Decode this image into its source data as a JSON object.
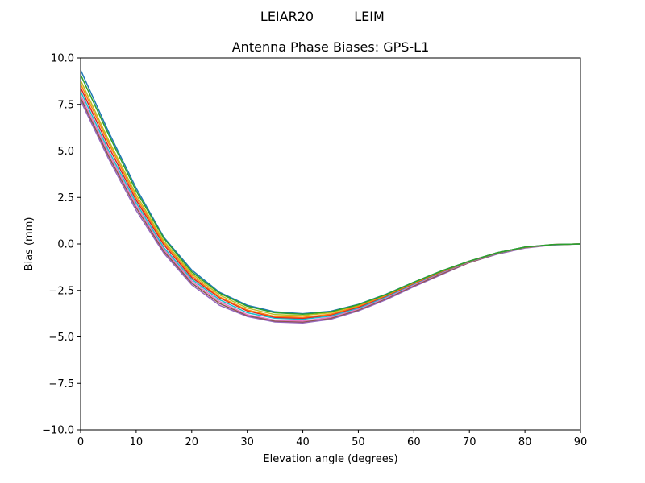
{
  "figure": {
    "suptitle_left": "LEIAR20",
    "suptitle_right": "LEIM"
  },
  "chart_data": {
    "type": "line",
    "title": "Antenna Phase Biases: GPS-L1",
    "xlabel": "Elevation angle (degrees)",
    "ylabel": "Bias (mm)",
    "xlim": [
      0,
      90
    ],
    "ylim": [
      -10,
      10
    ],
    "grid": false,
    "x": [
      0,
      5,
      10,
      15,
      20,
      25,
      30,
      35,
      40,
      45,
      50,
      55,
      60,
      65,
      70,
      75,
      80,
      85,
      90
    ],
    "xticks": [
      {
        "value": 0,
        "label": "0"
      },
      {
        "value": 10,
        "label": "10"
      },
      {
        "value": 20,
        "label": "20"
      },
      {
        "value": 30,
        "label": "30"
      },
      {
        "value": 40,
        "label": "40"
      },
      {
        "value": 50,
        "label": "50"
      },
      {
        "value": 60,
        "label": "60"
      },
      {
        "value": 70,
        "label": "70"
      },
      {
        "value": 80,
        "label": "80"
      },
      {
        "value": 90,
        "label": "90"
      }
    ],
    "yticks": [
      {
        "value": 10,
        "label": "10.0"
      },
      {
        "value": 7.5,
        "label": "7.5"
      },
      {
        "value": 5,
        "label": "5.0"
      },
      {
        "value": 2.5,
        "label": "2.5"
      },
      {
        "value": 0,
        "label": "0.0"
      },
      {
        "value": -2.5,
        "label": "−2.5"
      },
      {
        "value": -5,
        "label": "−5.0"
      },
      {
        "value": -7.5,
        "label": "−7.5"
      },
      {
        "value": -10,
        "label": "−10.0"
      }
    ],
    "series": [
      {
        "color": "#9467bd",
        "values": [
          7.7,
          4.6,
          1.8,
          -0.5,
          -2.2,
          -3.3,
          -3.9,
          -4.2,
          -4.25,
          -4.05,
          -3.6,
          -3.0,
          -2.3,
          -1.65,
          -1.0,
          -0.55,
          -0.22,
          -0.05,
          0.0
        ]
      },
      {
        "color": "#8c564b",
        "values": [
          7.85,
          4.75,
          1.95,
          -0.4,
          -2.1,
          -3.2,
          -3.85,
          -4.15,
          -4.2,
          -4.0,
          -3.55,
          -2.95,
          -2.25,
          -1.6,
          -1.0,
          -0.52,
          -0.2,
          -0.04,
          0.0
        ]
      },
      {
        "color": "#e377c2",
        "values": [
          8.0,
          4.9,
          2.05,
          -0.3,
          -2.0,
          -3.1,
          -3.8,
          -4.1,
          -4.15,
          -3.95,
          -3.5,
          -2.9,
          -2.2,
          -1.55,
          -0.97,
          -0.5,
          -0.2,
          -0.04,
          0.0
        ]
      },
      {
        "color": "#17becf",
        "values": [
          8.2,
          5.05,
          2.2,
          -0.2,
          -1.9,
          -3.0,
          -3.7,
          -4.0,
          -4.05,
          -3.88,
          -3.45,
          -2.85,
          -2.15,
          -1.52,
          -0.95,
          -0.5,
          -0.19,
          -0.04,
          0.0
        ]
      },
      {
        "color": "#d62728",
        "values": [
          8.4,
          5.25,
          2.35,
          -0.05,
          -1.8,
          -2.9,
          -3.6,
          -3.95,
          -4.0,
          -3.82,
          -3.4,
          -2.8,
          -2.12,
          -1.5,
          -0.94,
          -0.49,
          -0.18,
          -0.03,
          0.0
        ]
      },
      {
        "color": "#ff7f0e",
        "values": [
          8.6,
          5.45,
          2.5,
          0.05,
          -1.7,
          -2.85,
          -3.55,
          -3.9,
          -3.95,
          -3.78,
          -3.35,
          -2.77,
          -2.1,
          -1.48,
          -0.93,
          -0.48,
          -0.18,
          -0.03,
          0.0
        ]
      },
      {
        "color": "#bcbd22",
        "values": [
          8.8,
          5.6,
          2.65,
          0.15,
          -1.6,
          -2.75,
          -3.45,
          -3.8,
          -3.85,
          -3.7,
          -3.3,
          -2.73,
          -2.07,
          -1.46,
          -0.92,
          -0.47,
          -0.17,
          -0.03,
          0.0
        ]
      },
      {
        "color": "#1f77b4",
        "values": [
          9.35,
          6.05,
          3.0,
          0.35,
          -1.4,
          -2.6,
          -3.3,
          -3.65,
          -3.75,
          -3.62,
          -3.25,
          -2.7,
          -2.05,
          -1.45,
          -0.92,
          -0.47,
          -0.17,
          -0.03,
          0.0
        ]
      },
      {
        "color": "#2ca02c",
        "values": [
          9.1,
          5.9,
          2.85,
          0.3,
          -1.5,
          -2.65,
          -3.35,
          -3.7,
          -3.78,
          -3.65,
          -3.27,
          -2.72,
          -2.06,
          -1.45,
          -0.92,
          -0.47,
          -0.17,
          -0.03,
          0.0
        ]
      }
    ]
  }
}
